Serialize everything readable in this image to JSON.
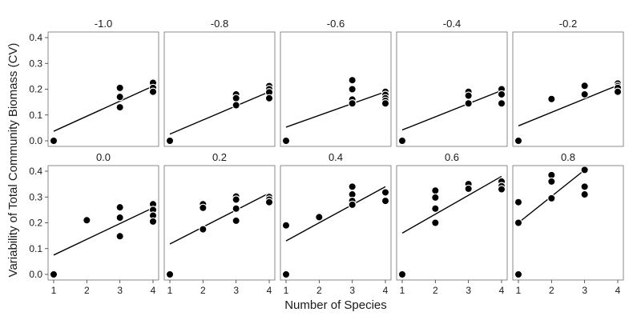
{
  "chart_data": {
    "type": "scatter",
    "layout": "faceted 2x5 small multiples, shared axes",
    "xlabel": "Number of Species",
    "ylabel": "Variability of Total Community Biomass (CV)",
    "xlim": [
      1,
      4
    ],
    "ylim": [
      0,
      0.4
    ],
    "x_ticks": [
      1,
      2,
      3,
      4
    ],
    "y_ticks": [
      "0.0",
      "0.1",
      "0.2",
      "0.3",
      "0.4"
    ],
    "grid": false,
    "marker_color": "#000000",
    "line_color": "#000000",
    "panels": [
      {
        "title": "-1.0",
        "points": [
          [
            1,
            0.0
          ],
          [
            3,
            0.205
          ],
          [
            3,
            0.17
          ],
          [
            3,
            0.13
          ],
          [
            4,
            0.225
          ],
          [
            4,
            0.205
          ],
          [
            4,
            0.19
          ]
        ],
        "fit": {
          "x": [
            1,
            4
          ],
          "y": [
            0.037,
            0.212
          ]
        }
      },
      {
        "title": "-0.8",
        "points": [
          [
            1,
            0.0
          ],
          [
            3,
            0.18
          ],
          [
            3,
            0.165
          ],
          [
            3,
            0.138
          ],
          [
            4,
            0.212
          ],
          [
            4,
            0.2
          ],
          [
            4,
            0.188
          ],
          [
            4,
            0.165
          ]
        ],
        "fit": {
          "x": [
            1,
            4
          ],
          "y": [
            0.026,
            0.19
          ]
        }
      },
      {
        "title": "-0.6",
        "points": [
          [
            1,
            0.0
          ],
          [
            3,
            0.235
          ],
          [
            3,
            0.2
          ],
          [
            3,
            0.16
          ],
          [
            3,
            0.145
          ],
          [
            4,
            0.19
          ],
          [
            4,
            0.178
          ],
          [
            4,
            0.165
          ],
          [
            4,
            0.155
          ],
          [
            4,
            0.145
          ]
        ],
        "fit": {
          "x": [
            1,
            4
          ],
          "y": [
            0.053,
            0.19
          ]
        }
      },
      {
        "title": "-0.4",
        "points": [
          [
            1,
            0.0
          ],
          [
            3,
            0.19
          ],
          [
            3,
            0.175
          ],
          [
            3,
            0.145
          ],
          [
            4,
            0.2
          ],
          [
            4,
            0.18
          ],
          [
            4,
            0.145
          ]
        ],
        "fit": {
          "x": [
            1,
            4
          ],
          "y": [
            0.042,
            0.195
          ]
        }
      },
      {
        "title": "-0.2",
        "points": [
          [
            1,
            0.0
          ],
          [
            2,
            0.162
          ],
          [
            3,
            0.213
          ],
          [
            3,
            0.18
          ],
          [
            4,
            0.222
          ],
          [
            4,
            0.212
          ],
          [
            4,
            0.205
          ],
          [
            4,
            0.19
          ]
        ],
        "fit": {
          "x": [
            1,
            4
          ],
          "y": [
            0.058,
            0.215
          ]
        }
      },
      {
        "title": "0.0",
        "points": [
          [
            1,
            0.0
          ],
          [
            2,
            0.21
          ],
          [
            3,
            0.26
          ],
          [
            3,
            0.22
          ],
          [
            3,
            0.148
          ],
          [
            4,
            0.272
          ],
          [
            4,
            0.25
          ],
          [
            4,
            0.228
          ],
          [
            4,
            0.205
          ]
        ],
        "fit": {
          "x": [
            1,
            4
          ],
          "y": [
            0.075,
            0.258
          ]
        }
      },
      {
        "title": "0.2",
        "points": [
          [
            1,
            0.0
          ],
          [
            2,
            0.272
          ],
          [
            2,
            0.258
          ],
          [
            2,
            0.175
          ],
          [
            3,
            0.302
          ],
          [
            3,
            0.29
          ],
          [
            3,
            0.255
          ],
          [
            3,
            0.208
          ],
          [
            4,
            0.3
          ],
          [
            4,
            0.29
          ],
          [
            4,
            0.28
          ]
        ],
        "fit": {
          "x": [
            1,
            4
          ],
          "y": [
            0.118,
            0.315
          ]
        }
      },
      {
        "title": "0.4",
        "points": [
          [
            1,
            0.19
          ],
          [
            1,
            0.0
          ],
          [
            2,
            0.222
          ],
          [
            3,
            0.34
          ],
          [
            3,
            0.31
          ],
          [
            3,
            0.285
          ],
          [
            3,
            0.27
          ],
          [
            4,
            0.318
          ],
          [
            4,
            0.285
          ]
        ],
        "fit": {
          "x": [
            1,
            4
          ],
          "y": [
            0.13,
            0.34
          ]
        }
      },
      {
        "title": "0.6",
        "points": [
          [
            1,
            0.0
          ],
          [
            2,
            0.325
          ],
          [
            2,
            0.298
          ],
          [
            2,
            0.255
          ],
          [
            2,
            0.2
          ],
          [
            3,
            0.35
          ],
          [
            3,
            0.332
          ],
          [
            4,
            0.36
          ],
          [
            4,
            0.342
          ],
          [
            4,
            0.33
          ]
        ],
        "fit": {
          "x": [
            1,
            4
          ],
          "y": [
            0.16,
            0.38
          ]
        }
      },
      {
        "title": "0.8",
        "points": [
          [
            1,
            0.28
          ],
          [
            1,
            0.2
          ],
          [
            1,
            0.0
          ],
          [
            2,
            0.385
          ],
          [
            2,
            0.36
          ],
          [
            2,
            0.295
          ],
          [
            3,
            0.405
          ],
          [
            3,
            0.34
          ],
          [
            3,
            0.31
          ]
        ],
        "fit": {
          "x": [
            1,
            3
          ],
          "y": [
            0.2,
            0.405
          ]
        }
      }
    ]
  }
}
